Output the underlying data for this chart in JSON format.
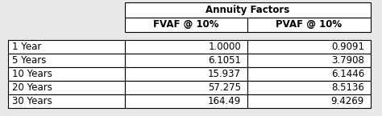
{
  "title": "Annuity Factors",
  "col_headers": [
    "FVAF @ 10%",
    "PVAF @ 10%"
  ],
  "row_labels": [
    "1 Year",
    "5 Years",
    "10 Years",
    "20 Years",
    "30 Years"
  ],
  "fvaf_values": [
    "1.0000",
    "6.1051",
    "15.937",
    "57.275",
    "164.49"
  ],
  "pvaf_values": [
    "0.9091",
    "3.7908",
    "6.1446",
    "8.5136",
    "9.4269"
  ],
  "bg_color": "#e8e8e8",
  "table_bg": "#ffffff",
  "font_size": 8.5,
  "header_font_size": 8.5,
  "lw": 0.8
}
